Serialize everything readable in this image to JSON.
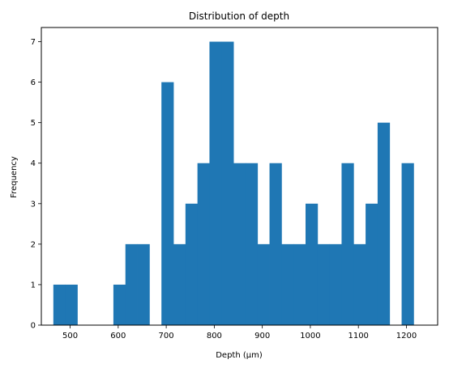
{
  "chart_data": {
    "type": "bar",
    "title": "Distribution of depth",
    "xlabel": "Depth (µm)",
    "ylabel": "Frequency",
    "xlim": [
      440,
      1265
    ],
    "ylim": [
      0,
      7.35
    ],
    "xticks": [
      500,
      600,
      700,
      800,
      900,
      1000,
      1100,
      1200
    ],
    "yticks": [
      0,
      1,
      2,
      3,
      4,
      5,
      6,
      7
    ],
    "grid": false,
    "color": "#1f77b4",
    "bins": [
      {
        "x0": 465,
        "x1": 490,
        "count": 1
      },
      {
        "x0": 490,
        "x1": 515,
        "count": 1
      },
      {
        "x0": 515,
        "x1": 540,
        "count": 0
      },
      {
        "x0": 540,
        "x1": 565,
        "count": 0
      },
      {
        "x0": 565,
        "x1": 590,
        "count": 0
      },
      {
        "x0": 590,
        "x1": 615,
        "count": 1
      },
      {
        "x0": 615,
        "x1": 640,
        "count": 2
      },
      {
        "x0": 640,
        "x1": 665,
        "count": 2
      },
      {
        "x0": 665,
        "x1": 690,
        "count": 0
      },
      {
        "x0": 690,
        "x1": 715,
        "count": 6
      },
      {
        "x0": 715,
        "x1": 740,
        "count": 2
      },
      {
        "x0": 740,
        "x1": 765,
        "count": 3
      },
      {
        "x0": 765,
        "x1": 790,
        "count": 4
      },
      {
        "x0": 790,
        "x1": 815,
        "count": 7
      },
      {
        "x0": 815,
        "x1": 840,
        "count": 7
      },
      {
        "x0": 840,
        "x1": 865,
        "count": 4
      },
      {
        "x0": 865,
        "x1": 890,
        "count": 4
      },
      {
        "x0": 890,
        "x1": 915,
        "count": 2
      },
      {
        "x0": 915,
        "x1": 940,
        "count": 4
      },
      {
        "x0": 940,
        "x1": 965,
        "count": 2
      },
      {
        "x0": 965,
        "x1": 990,
        "count": 2
      },
      {
        "x0": 990,
        "x1": 1015,
        "count": 3
      },
      {
        "x0": 1015,
        "x1": 1040,
        "count": 2
      },
      {
        "x0": 1040,
        "x1": 1065,
        "count": 2
      },
      {
        "x0": 1065,
        "x1": 1090,
        "count": 4
      },
      {
        "x0": 1090,
        "x1": 1115,
        "count": 2
      },
      {
        "x0": 1115,
        "x1": 1140,
        "count": 3
      },
      {
        "x0": 1140,
        "x1": 1165,
        "count": 5
      },
      {
        "x0": 1165,
        "x1": 1190,
        "count": 0
      },
      {
        "x0": 1190,
        "x1": 1215,
        "count": 4
      }
    ]
  }
}
